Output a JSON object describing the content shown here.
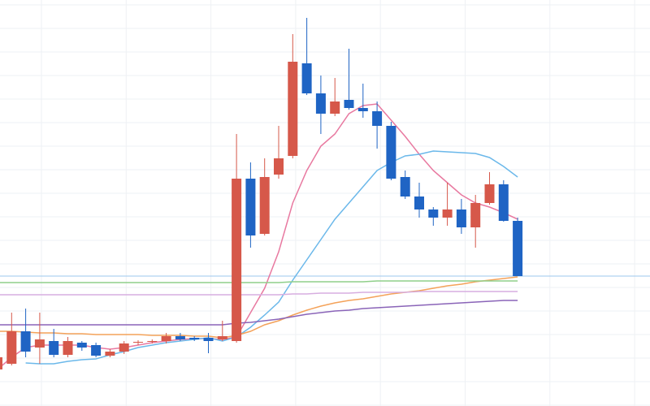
{
  "chart_data": {
    "type": "candlestick",
    "open": [
      45,
      52,
      92,
      72,
      80,
      63,
      78,
      75,
      62,
      67,
      78,
      79,
      80,
      86,
      84,
      84,
      82,
      80,
      280,
      212,
      285,
      308,
      422,
      385,
      360,
      377,
      367,
      363,
      345,
      282,
      258,
      242,
      232,
      242,
      220,
      250,
      273,
      228
    ],
    "high": [
      65,
      115,
      120,
      115,
      95,
      85,
      80,
      78,
      70,
      80,
      81,
      82,
      90,
      90,
      86,
      90,
      105,
      335,
      300,
      305,
      345,
      458,
      478,
      407,
      404,
      440,
      397,
      375,
      350,
      290,
      275,
      245,
      275,
      255,
      260,
      288,
      278,
      232
    ],
    "low": [
      40,
      50,
      60,
      52,
      60,
      60,
      68,
      60,
      60,
      64,
      75,
      77,
      77,
      80,
      80,
      65,
      80,
      78,
      195,
      210,
      280,
      305,
      383,
      335,
      357,
      365,
      355,
      317,
      278,
      255,
      232,
      222,
      222,
      212,
      195,
      248,
      227,
      160
    ],
    "close": [
      60,
      92,
      67,
      82,
      63,
      80,
      72,
      62,
      67,
      77,
      79,
      80,
      86,
      82,
      82,
      80,
      86,
      280,
      210,
      282,
      305,
      424,
      385,
      360,
      375,
      367,
      363,
      345,
      280,
      258,
      242,
      232,
      242,
      220,
      250,
      273,
      228,
      160
    ],
    "up_color": "#d6584a",
    "down_color": "#1f64c4",
    "price_line": true,
    "price_line_color": "#9cc7ee",
    "ylim": [
      0,
      500
    ],
    "series": [
      {
        "color": "#e879a0",
        "values": [
          45,
          60,
          72,
          75,
          75,
          75,
          75,
          72,
          70,
          72,
          75,
          78,
          80,
          82,
          83,
          83,
          82,
          85,
          115,
          145,
          190,
          250,
          290,
          320,
          335,
          360,
          370,
          372,
          352,
          332,
          310,
          290,
          275,
          260,
          250,
          245,
          238,
          230
        ]
      },
      {
        "color": "#6bb8ea",
        "values": [
          null,
          null,
          53,
          52,
          52,
          55,
          57,
          58,
          63,
          67,
          72,
          75,
          78,
          80,
          82,
          84,
          80,
          85,
          97,
          112,
          128,
          155,
          180,
          205,
          230,
          250,
          270,
          290,
          300,
          308,
          310,
          314,
          313,
          312,
          311,
          306,
          295,
          282
        ]
      },
      {
        "color": "#f4a259",
        "values": [
          92,
          92,
          91,
          90,
          90,
          89,
          89,
          88,
          88,
          88,
          88,
          87,
          87,
          87,
          86,
          86,
          84,
          87,
          92,
          100,
          105,
          112,
          118,
          123,
          127,
          130,
          132,
          135,
          138,
          140,
          142,
          145,
          148,
          150,
          153,
          155,
          157,
          159
        ]
      },
      {
        "color": "#8a64b8",
        "values": [
          100,
          100,
          100,
          100,
          100,
          100,
          100,
          100,
          100,
          100,
          100,
          100,
          100,
          100,
          100,
          100,
          100,
          102,
          103,
          105,
          107,
          110,
          113,
          115,
          117,
          118,
          120,
          121,
          122,
          123,
          124,
          125,
          126,
          127,
          128,
          129,
          130,
          130
        ]
      },
      {
        "color": "#d7aee0",
        "values": [
          137,
          137,
          137,
          137,
          137,
          137,
          137,
          137,
          137,
          137,
          137,
          137,
          137,
          137,
          137,
          137,
          137,
          137,
          137,
          137,
          137,
          138,
          138,
          139,
          139,
          139,
          140,
          140,
          140,
          140,
          141,
          141,
          141,
          141,
          141,
          141,
          141,
          141
        ]
      },
      {
        "color": "#8fcf8a",
        "values": [
          152,
          152,
          152,
          152,
          152,
          152,
          152,
          152,
          152,
          152,
          152,
          152,
          152,
          152,
          152,
          152,
          152,
          152,
          152,
          152,
          152,
          153,
          153,
          153,
          153,
          153,
          153,
          154,
          154,
          154,
          154,
          154,
          154,
          154,
          154,
          154,
          154,
          154
        ]
      }
    ]
  }
}
